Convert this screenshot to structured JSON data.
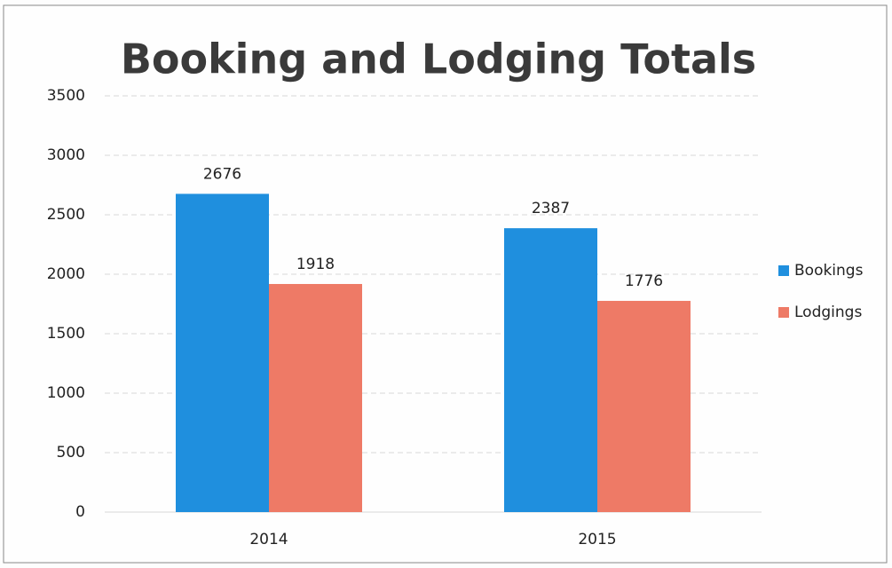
{
  "chart_data": {
    "type": "bar",
    "title": "Booking and Lodging Totals",
    "categories": [
      "2014",
      "2015"
    ],
    "series": [
      {
        "name": "Bookings",
        "color": "#1f8fde",
        "values": [
          2676,
          2387
        ]
      },
      {
        "name": "Lodgings",
        "color": "#ee7a66",
        "values": [
          1918,
          1776
        ]
      }
    ],
    "ylim": [
      0,
      3500
    ],
    "yticks": [
      0,
      500,
      1000,
      1500,
      2000,
      2500,
      3000,
      3500
    ],
    "grid": true,
    "legend": "right"
  }
}
